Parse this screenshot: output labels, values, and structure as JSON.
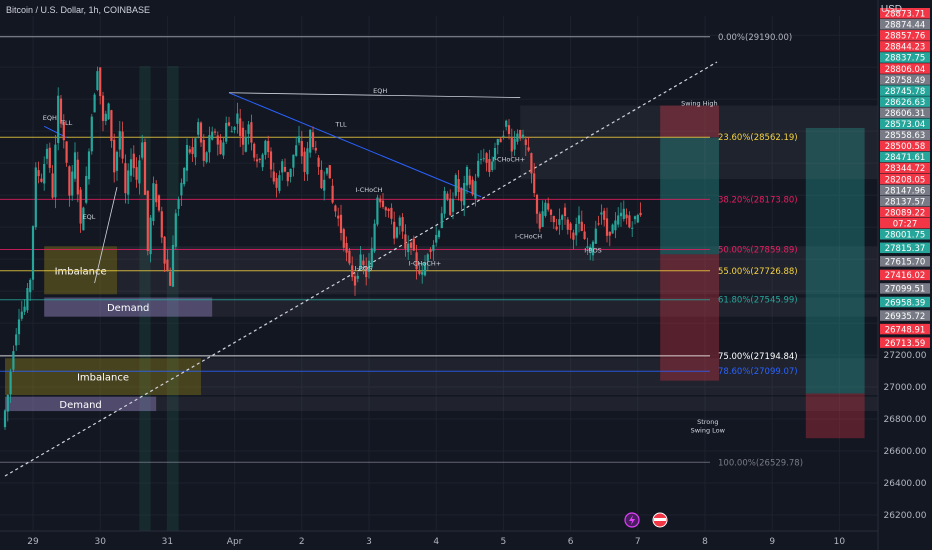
{
  "header": {
    "title": "Bitcoin / U.S. Dollar, 1h, COINBASE",
    "currency": "USD"
  },
  "chart_data": {
    "type": "candlestick",
    "symbol": "BTCUSD",
    "ylim": [
      26100,
      29320
    ],
    "x_ticks": [
      {
        "label": "29",
        "x": 0
      },
      {
        "label": "30",
        "x": 24
      },
      {
        "label": "31",
        "x": 48
      },
      {
        "label": "Apr",
        "x": 72
      },
      {
        "label": "2",
        "x": 96
      },
      {
        "label": "3",
        "x": 120
      },
      {
        "label": "4",
        "x": 144
      },
      {
        "label": "5",
        "x": 168
      },
      {
        "label": "6",
        "x": 192
      },
      {
        "label": "7",
        "x": 216
      },
      {
        "label": "8",
        "x": 240
      },
      {
        "label": "9",
        "x": 264
      },
      {
        "label": "10",
        "x": 288
      }
    ],
    "y_ticks": [
      26200,
      26400,
      26600,
      26800,
      27000,
      27200
    ],
    "price_path": [
      [
        -10,
        26750
      ],
      [
        -8,
        26950
      ],
      [
        -6,
        27250
      ],
      [
        -4,
        27450
      ],
      [
        -2,
        27500
      ],
      [
        0,
        27680
      ],
      [
        2,
        28350
      ],
      [
        4,
        28300
      ],
      [
        6,
        28500
      ],
      [
        8,
        28200
      ],
      [
        10,
        28800
      ],
      [
        12,
        28550
      ],
      [
        14,
        28200
      ],
      [
        16,
        28450
      ],
      [
        18,
        28000
      ],
      [
        20,
        28300
      ],
      [
        22,
        28700
      ],
      [
        24,
        29000
      ],
      [
        26,
        28650
      ],
      [
        28,
        28750
      ],
      [
        30,
        28350
      ],
      [
        32,
        28600
      ],
      [
        34,
        28200
      ],
      [
        36,
        28450
      ],
      [
        38,
        28300
      ],
      [
        40,
        28550
      ],
      [
        42,
        27850
      ],
      [
        44,
        28250
      ],
      [
        46,
        28100
      ],
      [
        48,
        27800
      ],
      [
        50,
        27650
      ],
      [
        52,
        28100
      ],
      [
        54,
        28250
      ],
      [
        56,
        28500
      ],
      [
        58,
        28450
      ],
      [
        60,
        28650
      ],
      [
        62,
        28400
      ],
      [
        64,
        28550
      ],
      [
        66,
        28600
      ],
      [
        68,
        28450
      ],
      [
        70,
        28650
      ],
      [
        72,
        28600
      ],
      [
        74,
        28700
      ],
      [
        76,
        28500
      ],
      [
        78,
        28650
      ],
      [
        80,
        28450
      ],
      [
        82,
        28400
      ],
      [
        84,
        28550
      ],
      [
        86,
        28350
      ],
      [
        88,
        28250
      ],
      [
        90,
        28400
      ],
      [
        92,
        28300
      ],
      [
        94,
        28450
      ],
      [
        96,
        28550
      ],
      [
        98,
        28350
      ],
      [
        100,
        28600
      ],
      [
        102,
        28450
      ],
      [
        104,
        28250
      ],
      [
        106,
        28400
      ],
      [
        108,
        28150
      ],
      [
        110,
        28050
      ],
      [
        112,
        27900
      ],
      [
        114,
        27750
      ],
      [
        116,
        27650
      ],
      [
        118,
        27800
      ],
      [
        120,
        27700
      ],
      [
        122,
        27850
      ],
      [
        124,
        28200
      ],
      [
        126,
        28150
      ],
      [
        128,
        28100
      ],
      [
        130,
        27950
      ],
      [
        132,
        28050
      ],
      [
        134,
        27850
      ],
      [
        136,
        27900
      ],
      [
        138,
        27750
      ],
      [
        140,
        27700
      ],
      [
        142,
        27850
      ],
      [
        144,
        27900
      ],
      [
        146,
        28000
      ],
      [
        148,
        28200
      ],
      [
        150,
        28100
      ],
      [
        152,
        28300
      ],
      [
        154,
        28150
      ],
      [
        156,
        28350
      ],
      [
        158,
        28200
      ],
      [
        160,
        28400
      ],
      [
        162,
        28450
      ],
      [
        164,
        28350
      ],
      [
        166,
        28500
      ],
      [
        168,
        28550
      ],
      [
        170,
        28650
      ],
      [
        172,
        28500
      ],
      [
        174,
        28600
      ],
      [
        176,
        28550
      ],
      [
        178,
        28450
      ],
      [
        180,
        28200
      ],
      [
        182,
        28000
      ],
      [
        184,
        28150
      ],
      [
        186,
        28050
      ],
      [
        188,
        28000
      ],
      [
        190,
        28100
      ],
      [
        192,
        28000
      ],
      [
        194,
        27950
      ],
      [
        196,
        28050
      ],
      [
        198,
        27900
      ],
      [
        200,
        27850
      ],
      [
        202,
        28000
      ],
      [
        204,
        28100
      ],
      [
        206,
        27950
      ],
      [
        208,
        28000
      ],
      [
        210,
        28050
      ],
      [
        212,
        28100
      ],
      [
        214,
        28000
      ],
      [
        216,
        28050
      ],
      [
        218,
        28090
      ]
    ],
    "fib_levels": [
      {
        "label": "0.00%(29190.00)",
        "price": 29190.0,
        "color": "#b2b5be"
      },
      {
        "label": "23.60%(28562.19)",
        "price": 28562.19,
        "color": "#f5d33f"
      },
      {
        "label": "38.20%(28173.80)",
        "price": 28173.8,
        "color": "#e91e63"
      },
      {
        "label": "50.00%(27859.89)",
        "price": 27859.89,
        "color": "#e91e63"
      },
      {
        "label": "55.00%(27726.88)",
        "price": 27726.88,
        "color": "#f5d33f"
      },
      {
        "label": "61.80%(27545.99)",
        "price": 27545.99,
        "color": "#26a69a"
      },
      {
        "label": "75.00%(27194.84)",
        "price": 27194.84,
        "color": "#ffffff"
      },
      {
        "label": "78.60%(27099.07)",
        "price": 27099.07,
        "color": "#2962ff"
      },
      {
        "label": "100.00%(26529.78)",
        "price": 26529.78,
        "color": "#787b86"
      }
    ],
    "zones": [
      {
        "label": "Imbalance",
        "x0": 4,
        "x1": 30,
        "price_top": 27880,
        "price_bottom": 27580,
        "color": "#8a7a1c"
      },
      {
        "label": "Demand",
        "x0": 4,
        "x1": 64,
        "price_top": 27560,
        "price_bottom": 27440,
        "color": "#9c8ac9"
      },
      {
        "label": "Imbalance",
        "x0": -10,
        "x1": 60,
        "price_top": 27180,
        "price_bottom": 26950,
        "color": "#8a7a1c"
      },
      {
        "label": "Demand",
        "x0": -10,
        "x1": 44,
        "price_top": 26940,
        "price_bottom": 26850,
        "color": "#9c8ac9"
      }
    ],
    "structure_labels": [
      {
        "text": "EQH",
        "x": 6,
        "price": 28670
      },
      {
        "text": "TLL",
        "x": 12,
        "price": 28640
      },
      {
        "text": "EQL",
        "x": 20,
        "price": 28050
      },
      {
        "text": "EQH",
        "x": 124,
        "price": 28840
      },
      {
        "text": "TLL",
        "x": 110,
        "price": 28630
      },
      {
        "text": "I-CHoCH",
        "x": 120,
        "price": 28220
      },
      {
        "text": "I-CHoCH+",
        "x": 170,
        "price": 28410
      },
      {
        "text": "I-CHoCH",
        "x": 177,
        "price": 27930
      },
      {
        "text": "I-CHoCH+",
        "x": 140,
        "price": 27760
      },
      {
        "text": "I-BOS",
        "x": 118,
        "price": 27730
      },
      {
        "text": "I-BOS",
        "x": 200,
        "price": 27840
      },
      {
        "text": "Swing High",
        "x": 238,
        "price": 28760
      },
      {
        "text": "Strong",
        "x": 241,
        "price": 26770
      },
      {
        "text": "Swing Low",
        "x": 241,
        "price": 26715
      }
    ],
    "price_labels": [
      {
        "text": "28873.71",
        "color": "#f23645"
      },
      {
        "text": "28874.44",
        "color": "#787b86"
      },
      {
        "text": "28857.76",
        "color": "#f23645"
      },
      {
        "text": "28844.23",
        "color": "#f23645"
      },
      {
        "text": "28837.75",
        "color": "#26a69a"
      },
      {
        "text": "28806.04",
        "color": "#f23645"
      },
      {
        "text": "28758.49",
        "color": "#787b86"
      },
      {
        "text": "28745.78",
        "color": "#26a69a"
      },
      {
        "text": "28626.63",
        "color": "#26a69a"
      },
      {
        "text": "28606.31",
        "color": "#787b86"
      },
      {
        "text": "28573.04",
        "color": "#26a69a"
      },
      {
        "text": "28558.63",
        "color": "#787b86"
      },
      {
        "text": "28500.58",
        "color": "#f23645"
      },
      {
        "text": "28471.61",
        "color": "#26a69a"
      },
      {
        "text": "28344.72",
        "color": "#f23645"
      },
      {
        "text": "28208.05",
        "color": "#f23645"
      },
      {
        "text": "28147.96",
        "color": "#787b86"
      },
      {
        "text": "28137.57",
        "color": "#787b86"
      },
      {
        "text": "28089.22",
        "color": "#f23645"
      },
      {
        "text": "07:27",
        "color": "#f23645"
      },
      {
        "text": "28001.75",
        "color": "#26a69a"
      },
      {
        "text": "27815.37",
        "color": "#26a69a"
      },
      {
        "text": "27615.70",
        "color": "#787b86"
      },
      {
        "text": "27416.02",
        "color": "#f23645"
      },
      {
        "text": "27099.51",
        "color": "#787b86"
      },
      {
        "text": "26958.39",
        "color": "#26a69a"
      },
      {
        "text": "26935.72",
        "color": "#787b86"
      },
      {
        "text": "26748.91",
        "color": "#f23645"
      },
      {
        "text": "26713.59",
        "color": "#f23645"
      }
    ],
    "positions": [
      {
        "type": "long",
        "x0": 224,
        "x1": 245,
        "entry": 27830,
        "target": 28560,
        "stop": 27040
      },
      {
        "type": "long",
        "x0": 276,
        "x1": 297,
        "entry": 26960,
        "target": 28620,
        "stop": 26680
      }
    ]
  }
}
